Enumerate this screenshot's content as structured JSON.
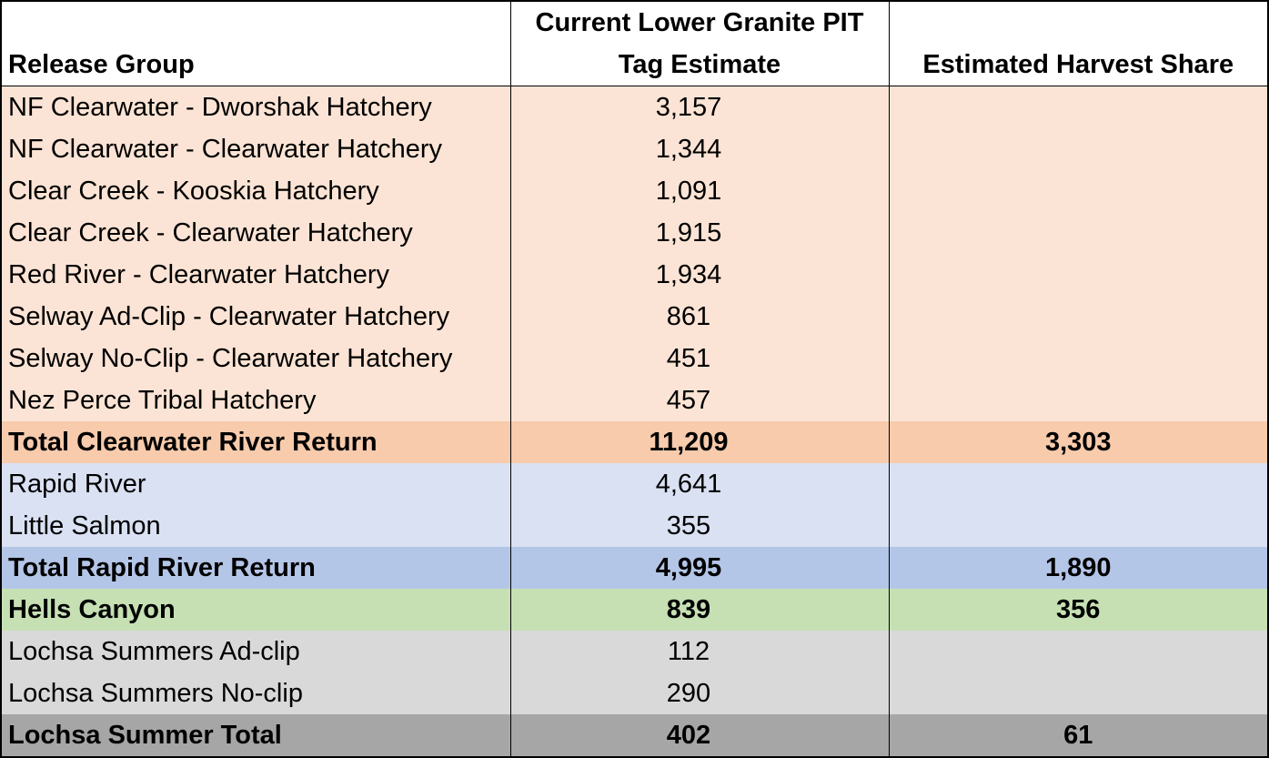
{
  "headers": {
    "release_group": "Release Group",
    "pit_line1": "Current Lower Granite PIT",
    "pit_line2": "Tag Estimate",
    "harvest_share": "Estimated Harvest Share"
  },
  "rows": [
    {
      "group": "NF Clearwater - Dworshak Hatchery",
      "estimate": "3,157",
      "share": "",
      "style": "cw"
    },
    {
      "group": "NF Clearwater - Clearwater Hatchery",
      "estimate": "1,344",
      "share": "",
      "style": "cw"
    },
    {
      "group": "Clear Creek - Kooskia Hatchery",
      "estimate": "1,091",
      "share": "",
      "style": "cw"
    },
    {
      "group": "Clear Creek - Clearwater Hatchery",
      "estimate": "1,915",
      "share": "",
      "style": "cw"
    },
    {
      "group": "Red River - Clearwater Hatchery",
      "estimate": "1,934",
      "share": "",
      "style": "cw"
    },
    {
      "group": "Selway Ad-Clip - Clearwater Hatchery",
      "estimate": "861",
      "share": "",
      "style": "cw"
    },
    {
      "group": "Selway No-Clip - Clearwater Hatchery",
      "estimate": "451",
      "share": "",
      "style": "cw"
    },
    {
      "group": "Nez Perce Tribal Hatchery",
      "estimate": "457",
      "share": "",
      "style": "cw"
    },
    {
      "group": "Total Clearwater River Return",
      "estimate": "11,209",
      "share": "3,303",
      "style": "cwt"
    },
    {
      "group": "Rapid River",
      "estimate": "4,641",
      "share": "",
      "style": "rr"
    },
    {
      "group": "Little Salmon",
      "estimate": "355",
      "share": "",
      "style": "rr"
    },
    {
      "group": "Total Rapid River Return",
      "estimate": "4,995",
      "share": "1,890",
      "style": "rrt"
    },
    {
      "group": "Hells Canyon",
      "estimate": "839",
      "share": "356",
      "style": "hc"
    },
    {
      "group": "Lochsa Summers Ad-clip",
      "estimate": "112",
      "share": "",
      "style": "lo"
    },
    {
      "group": "Lochsa Summers No-clip",
      "estimate": "290",
      "share": "",
      "style": "lo"
    },
    {
      "group": "Lochsa Summer Total",
      "estimate": "402",
      "share": "61",
      "style": "lot"
    }
  ]
}
